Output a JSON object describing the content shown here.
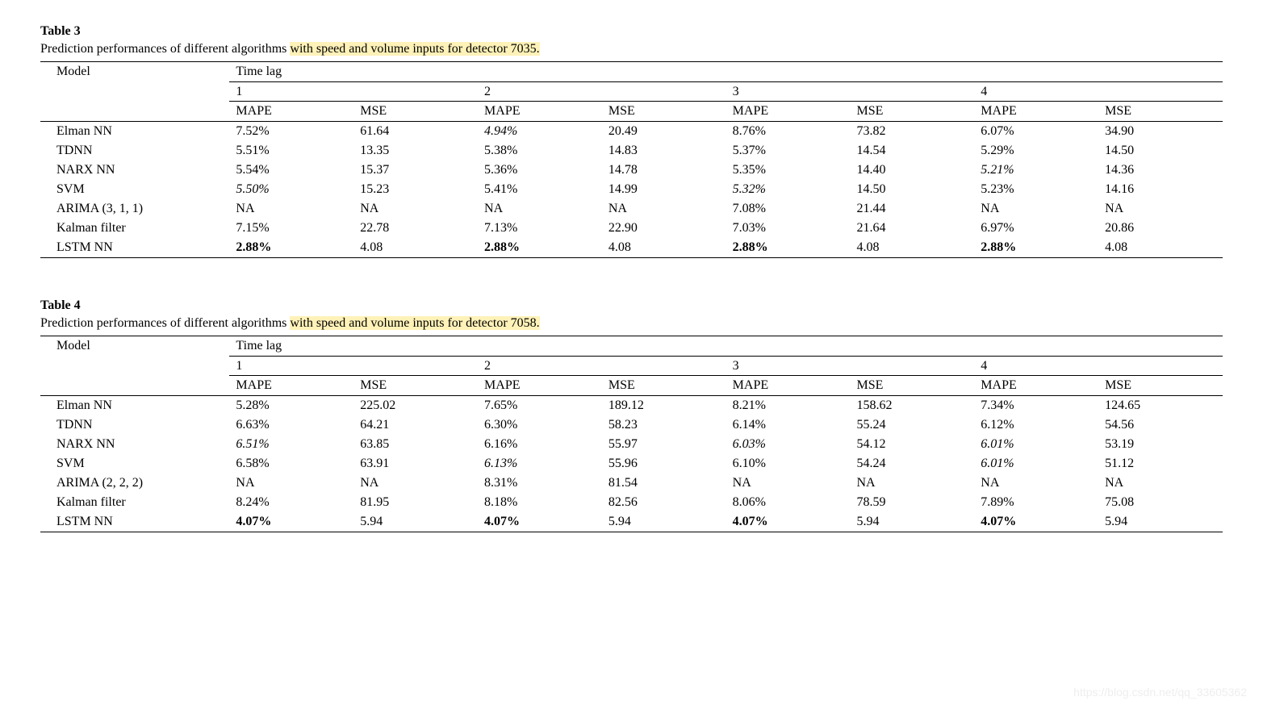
{
  "tables": [
    {
      "title": "Table 3",
      "caption_prefix": "Prediction performances of different algorithms ",
      "caption_highlight": "with speed and volume inputs for detector 7035.",
      "header": {
        "model": "Model",
        "timelag": "Time lag",
        "lags": [
          "1",
          "2",
          "3",
          "4"
        ],
        "metrics": [
          "MAPE",
          "MSE"
        ]
      },
      "rows": [
        {
          "model": "Elman NN",
          "cells": [
            {
              "v": "7.52%"
            },
            {
              "v": "61.64"
            },
            {
              "v": "4.94%",
              "i": true
            },
            {
              "v": "20.49"
            },
            {
              "v": "8.76%"
            },
            {
              "v": "73.82"
            },
            {
              "v": "6.07%"
            },
            {
              "v": "34.90"
            }
          ]
        },
        {
          "model": "TDNN",
          "cells": [
            {
              "v": "5.51%"
            },
            {
              "v": "13.35"
            },
            {
              "v": "5.38%"
            },
            {
              "v": "14.83"
            },
            {
              "v": "5.37%"
            },
            {
              "v": "14.54"
            },
            {
              "v": "5.29%"
            },
            {
              "v": "14.50"
            }
          ]
        },
        {
          "model": "NARX NN",
          "cells": [
            {
              "v": "5.54%"
            },
            {
              "v": "15.37"
            },
            {
              "v": "5.36%"
            },
            {
              "v": "14.78"
            },
            {
              "v": "5.35%"
            },
            {
              "v": "14.40"
            },
            {
              "v": "5.21%",
              "i": true
            },
            {
              "v": "14.36"
            }
          ]
        },
        {
          "model": "SVM",
          "cells": [
            {
              "v": "5.50%",
              "i": true
            },
            {
              "v": "15.23"
            },
            {
              "v": "5.41%"
            },
            {
              "v": "14.99"
            },
            {
              "v": "5.32%",
              "i": true
            },
            {
              "v": "14.50"
            },
            {
              "v": "5.23%"
            },
            {
              "v": "14.16"
            }
          ]
        },
        {
          "model": "ARIMA (3, 1, 1)",
          "cells": [
            {
              "v": "NA"
            },
            {
              "v": "NA"
            },
            {
              "v": "NA"
            },
            {
              "v": "NA"
            },
            {
              "v": "7.08%"
            },
            {
              "v": "21.44"
            },
            {
              "v": "NA"
            },
            {
              "v": "NA"
            }
          ]
        },
        {
          "model": "Kalman filter",
          "cells": [
            {
              "v": "7.15%"
            },
            {
              "v": "22.78"
            },
            {
              "v": "7.13%"
            },
            {
              "v": "22.90"
            },
            {
              "v": "7.03%"
            },
            {
              "v": "21.64"
            },
            {
              "v": "6.97%"
            },
            {
              "v": "20.86"
            }
          ]
        },
        {
          "model": "LSTM NN",
          "cells": [
            {
              "v": "2.88%",
              "b": true
            },
            {
              "v": "4.08"
            },
            {
              "v": "2.88%",
              "b": true
            },
            {
              "v": "4.08"
            },
            {
              "v": "2.88%",
              "b": true
            },
            {
              "v": "4.08"
            },
            {
              "v": "2.88%",
              "b": true
            },
            {
              "v": "4.08"
            }
          ]
        }
      ]
    },
    {
      "title": "Table 4",
      "caption_prefix": "Prediction performances of different algorithms ",
      "caption_highlight": "with speed and volume inputs for detector 7058.",
      "header": {
        "model": "Model",
        "timelag": "Time lag",
        "lags": [
          "1",
          "2",
          "3",
          "4"
        ],
        "metrics": [
          "MAPE",
          "MSE"
        ]
      },
      "rows": [
        {
          "model": "Elman NN",
          "cells": [
            {
              "v": "5.28%"
            },
            {
              "v": "225.02"
            },
            {
              "v": "7.65%"
            },
            {
              "v": "189.12"
            },
            {
              "v": "8.21%"
            },
            {
              "v": "158.62"
            },
            {
              "v": "7.34%"
            },
            {
              "v": "124.65"
            }
          ]
        },
        {
          "model": "TDNN",
          "cells": [
            {
              "v": "6.63%"
            },
            {
              "v": "64.21"
            },
            {
              "v": "6.30%"
            },
            {
              "v": "58.23"
            },
            {
              "v": "6.14%"
            },
            {
              "v": "55.24"
            },
            {
              "v": "6.12%"
            },
            {
              "v": "54.56"
            }
          ]
        },
        {
          "model": "NARX NN",
          "cells": [
            {
              "v": "6.51%",
              "i": true
            },
            {
              "v": "63.85"
            },
            {
              "v": "6.16%"
            },
            {
              "v": "55.97"
            },
            {
              "v": "6.03%",
              "i": true
            },
            {
              "v": "54.12"
            },
            {
              "v": "6.01%",
              "i": true
            },
            {
              "v": "53.19"
            }
          ]
        },
        {
          "model": "SVM",
          "cells": [
            {
              "v": "6.58%"
            },
            {
              "v": "63.91"
            },
            {
              "v": "6.13%",
              "i": true
            },
            {
              "v": "55.96"
            },
            {
              "v": "6.10%"
            },
            {
              "v": "54.24"
            },
            {
              "v": "6.01%",
              "i": true
            },
            {
              "v": "51.12"
            }
          ]
        },
        {
          "model": "ARIMA (2, 2, 2)",
          "cells": [
            {
              "v": "NA"
            },
            {
              "v": "NA"
            },
            {
              "v": "8.31%"
            },
            {
              "v": "81.54"
            },
            {
              "v": "NA"
            },
            {
              "v": "NA"
            },
            {
              "v": "NA"
            },
            {
              "v": "NA"
            }
          ]
        },
        {
          "model": "Kalman filter",
          "cells": [
            {
              "v": "8.24%"
            },
            {
              "v": "81.95"
            },
            {
              "v": "8.18%"
            },
            {
              "v": "82.56"
            },
            {
              "v": "8.06%"
            },
            {
              "v": "78.59"
            },
            {
              "v": "7.89%"
            },
            {
              "v": "75.08"
            }
          ]
        },
        {
          "model": "LSTM NN",
          "cells": [
            {
              "v": "4.07%",
              "b": true
            },
            {
              "v": "5.94"
            },
            {
              "v": "4.07%",
              "b": true
            },
            {
              "v": "5.94"
            },
            {
              "v": "4.07%",
              "b": true
            },
            {
              "v": "5.94"
            },
            {
              "v": "4.07%",
              "b": true
            },
            {
              "v": "5.94"
            }
          ]
        }
      ]
    }
  ],
  "watermark": "https://blog.csdn.net/qq_33605362",
  "colors": {
    "highlight_bg": "#fff2b8",
    "text": "#000000",
    "background": "#ffffff",
    "watermark": "#eeeeee"
  },
  "col_widths_pct": [
    16,
    10.5,
    10.5,
    10.5,
    10.5,
    10.5,
    10.5,
    10.5,
    10.5
  ]
}
